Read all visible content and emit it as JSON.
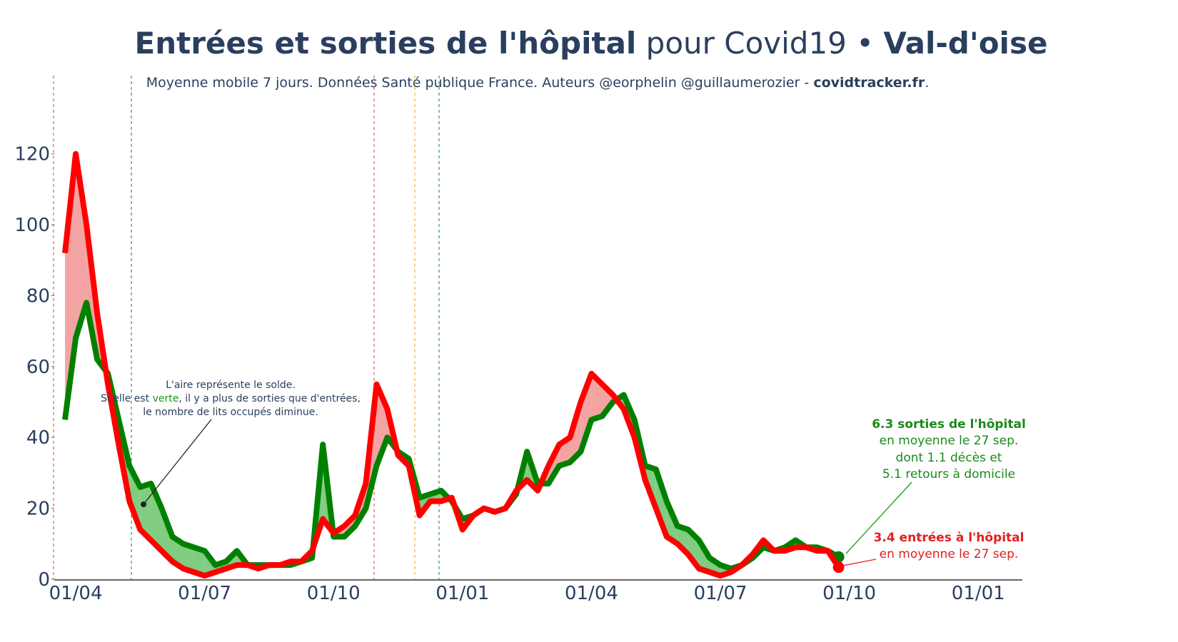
{
  "chart_data": {
    "type": "line",
    "title": [
      "Entrées et sorties de l'hôpital",
      " pour Covid19 • ",
      "Val-d'oise"
    ],
    "subtitle": [
      "Moyenne mobile 7 jours. Données Santé publique France. Auteurs @eorphelin @guillaumerozier - ",
      "covidtracker.fr",
      "."
    ],
    "categories": [
      null,
      "01/04",
      null,
      null,
      null,
      null,
      null,
      null,
      null,
      null,
      null,
      null,
      null,
      "01/07",
      null,
      null,
      null,
      null,
      null,
      null,
      null,
      null,
      null,
      null,
      null,
      "01/10",
      null,
      null,
      null,
      null,
      null,
      null,
      null,
      null,
      null,
      null,
      null,
      "01/01",
      null,
      null,
      null,
      null,
      null,
      null,
      null,
      null,
      null,
      null,
      null,
      "01/04",
      null,
      null,
      null,
      null,
      null,
      null,
      null,
      null,
      null,
      null,
      null,
      "01/07",
      null,
      null,
      null,
      null,
      null,
      null,
      null,
      null,
      null,
      null,
      null,
      "01/10",
      null,
      null,
      null,
      null,
      null,
      null,
      null,
      null,
      null,
      null,
      null,
      "01/01",
      null,
      null,
      null
    ],
    "series": [
      {
        "color": "#008000",
        "fill": "#80cc80",
        "values": [
          45,
          68,
          78,
          62,
          58,
          45,
          32,
          26,
          27,
          20,
          12,
          10,
          9,
          8,
          4,
          5,
          8,
          4,
          4,
          4,
          4,
          4,
          5,
          6,
          38,
          12,
          12,
          15,
          20,
          32,
          40,
          36,
          34,
          23,
          24,
          25,
          22,
          17,
          18,
          20,
          19,
          20,
          24,
          36,
          27,
          27,
          32,
          33,
          36,
          45,
          46,
          50,
          52,
          45,
          32,
          31,
          22,
          15,
          14,
          11,
          6,
          4,
          3,
          4,
          6,
          9,
          8,
          9,
          11,
          9,
          9,
          8,
          6.3,
          null,
          null,
          null,
          null,
          null,
          null,
          null,
          null,
          null,
          null,
          null,
          null,
          null,
          null,
          null,
          null
        ]
      },
      {
        "color": "#ff0000",
        "fill": "#f4a3a3",
        "values": [
          92,
          120,
          100,
          75,
          55,
          38,
          22,
          14,
          11,
          8,
          5,
          3,
          2,
          1,
          2,
          3,
          4,
          4,
          3,
          4,
          4,
          5,
          5,
          8,
          17,
          13,
          15,
          18,
          27,
          55,
          48,
          35,
          32,
          18,
          22,
          22,
          23,
          14,
          18,
          20,
          19,
          20,
          25,
          28,
          25,
          32,
          38,
          40,
          50,
          58,
          55,
          52,
          48,
          40,
          28,
          20,
          12,
          10,
          7,
          3,
          2,
          1,
          2,
          4,
          7,
          11,
          8,
          8,
          9,
          9,
          8,
          8,
          3.4,
          null,
          null,
          null,
          null,
          null,
          null,
          null,
          null,
          null,
          null,
          null,
          null,
          null,
          null,
          null,
          null
        ]
      }
    ],
    "ylim": [
      0,
      130
    ],
    "yticks": [
      0,
      20,
      40,
      60,
      80,
      100,
      120
    ],
    "grid": false,
    "annotations": {
      "area_note": {
        "line1": "L'aire représente le solde.",
        "line2": [
          "Si elle est ",
          "verte",
          ", il y a plus de sorties que d'entrées,"
        ],
        "line3": "le nombre de lits occupés diminue."
      },
      "exits": {
        "bold": "6.3 sorties de l'hôpital",
        "lines": [
          "en moyenne le 27 sep.",
          "dont 1.1 décès et",
          "5.1 retours à domicile"
        ]
      },
      "entries": {
        "bold": "3.4 entrées à l'hôpital",
        "lines": [
          "en moyenne le 27 sep."
        ]
      }
    }
  }
}
